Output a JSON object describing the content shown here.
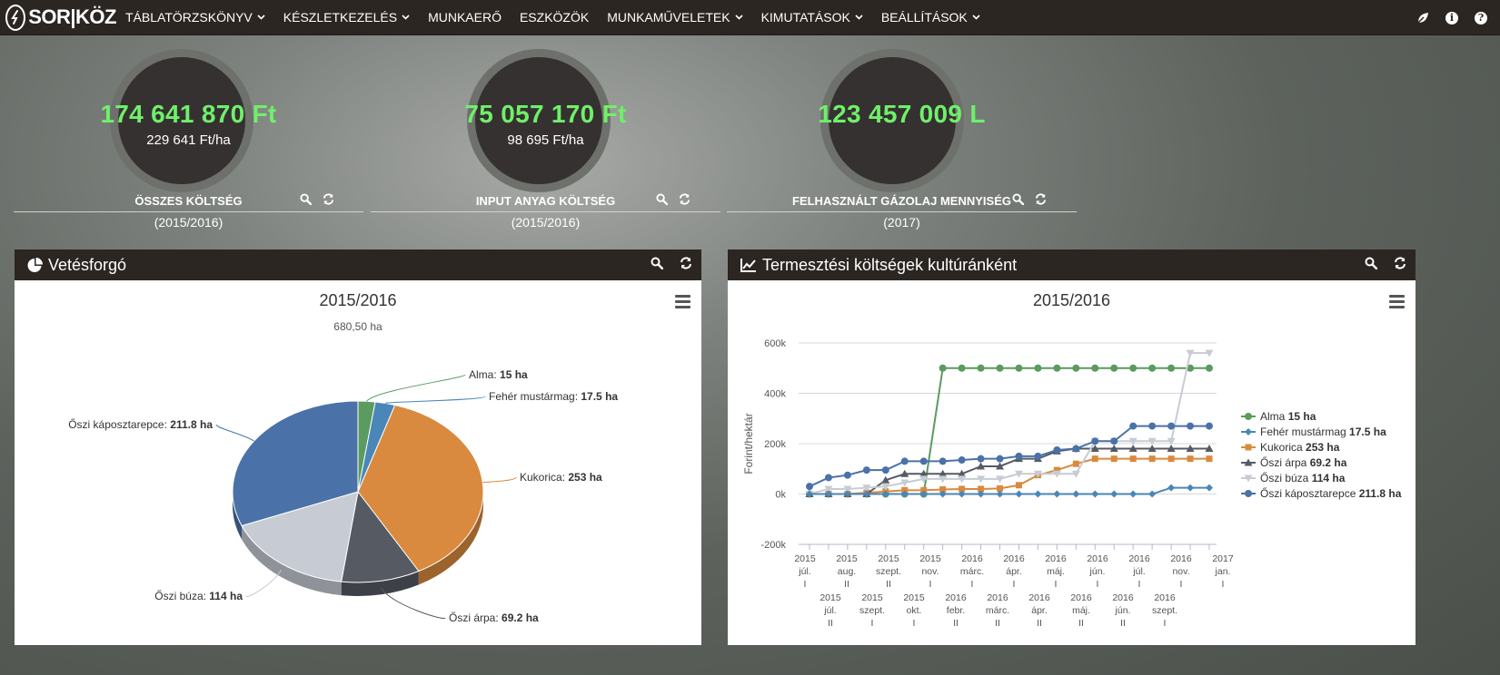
{
  "nav": {
    "brand": "SOR|KÖZ",
    "items": [
      {
        "label": "TÁBLATÖRZSKÖNYV",
        "caret": true
      },
      {
        "label": "KÉSZLETKEZELÉS",
        "caret": true
      },
      {
        "label": "MUNKAERŐ",
        "caret": false
      },
      {
        "label": "ESZKÖZÖK",
        "caret": false
      },
      {
        "label": "MUNKAMŰVELETEK",
        "caret": true
      },
      {
        "label": "KIMUTATÁSOK",
        "caret": true
      },
      {
        "label": "BEÁLLÍTÁSOK",
        "caret": true
      }
    ],
    "right_icons": [
      "leaf-icon",
      "info-icon",
      "help-icon"
    ]
  },
  "kpis": [
    {
      "value": "174 641 870 Ft",
      "sub": "229 641 Ft/ha",
      "label": "ÖSSZES KÖLTSÉG",
      "period": "(2015/2016)"
    },
    {
      "value": "75 057 170 Ft",
      "sub": "98 695 Ft/ha",
      "label": "INPUT ANYAG KÖLTSÉG",
      "period": "(2015/2016)"
    },
    {
      "value": "123 457 009 L",
      "sub": "",
      "label": "FELHASZNÁLT GÁZOLAJ MENNYISÉG",
      "period": "(2017)"
    }
  ],
  "colors": {
    "kpi_value": "#6ff06a",
    "navbar": "#2b2622",
    "alma": "#5b9b5f",
    "feher_mustarmag": "#4a86b8",
    "kukorica": "#d98a3e",
    "oszi_arpa": "#555a63",
    "oszi_buza": "#c7ccd4",
    "oszi_kaposztarepce": "#4a72a8"
  },
  "pie_panel": {
    "title": "Vetésforgó",
    "chart_title": "2015/2016",
    "chart_sub": "680,50 ha"
  },
  "line_panel": {
    "title": "Termesztési költségek kultúránként",
    "chart_title": "2015/2016"
  },
  "chart_data": [
    {
      "type": "pie",
      "title": "2015/2016",
      "subtitle": "680,50 ha",
      "unit": "ha",
      "slices": [
        {
          "name": "Alma",
          "value": 15,
          "display": "15 ha"
        },
        {
          "name": "Fehér mustármag",
          "value": 17.5,
          "display": "17.5 ha"
        },
        {
          "name": "Kukorica",
          "value": 253,
          "display": "253 ha"
        },
        {
          "name": "Őszi árpa",
          "value": 69.2,
          "display": "69.2 ha"
        },
        {
          "name": "Őszi búza",
          "value": 114,
          "display": "114 ha"
        },
        {
          "name": "Őszi káposztarepce",
          "value": 211.8,
          "display": "211.8 ha"
        }
      ]
    },
    {
      "type": "line",
      "title": "2015/2016",
      "ylabel": "Forint/hektár",
      "ylim": [
        -200000,
        600000
      ],
      "yticks": [
        "-200k",
        "0k",
        "200k",
        "400k",
        "600k"
      ],
      "ytick_values": [
        -200000,
        0,
        200000,
        400000,
        600000
      ],
      "x_labels_top": [
        "2015 júl. I",
        "2015 aug. II",
        "2015 szept. II",
        "2015 nov. I",
        "2016 márc. I",
        "2016 ápr. I",
        "2016 máj. I",
        "2016 jún. I",
        "2016 júl. I",
        "2016 nov. I",
        "2017 jan. I"
      ],
      "x_labels_bottom": [
        "2015 júl. II",
        "2015 szept. I",
        "2015 okt. I",
        "2016 febr. II",
        "2016 márc. II",
        "2016 ápr. II",
        "2016 máj. II",
        "2016 jún. II",
        "2016 szept. I"
      ],
      "legend": "right",
      "series": [
        {
          "name": "Alma",
          "display": "15 ha",
          "marker": "circle",
          "values": [
            0,
            0,
            0,
            0,
            0,
            0,
            0,
            500000,
            500000,
            500000,
            500000,
            500000,
            500000,
            500000,
            500000,
            500000,
            500000,
            500000,
            500000,
            500000,
            500000,
            500000
          ]
        },
        {
          "name": "Fehér mustármag",
          "display": "17.5 ha",
          "marker": "diamond",
          "values": [
            0,
            0,
            0,
            0,
            0,
            0,
            0,
            0,
            0,
            0,
            0,
            0,
            0,
            0,
            0,
            0,
            0,
            0,
            0,
            25000,
            25000,
            25000
          ]
        },
        {
          "name": "Kukorica",
          "display": "253 ha",
          "marker": "square",
          "values": [
            0,
            0,
            0,
            5000,
            10000,
            15000,
            15000,
            18000,
            20000,
            20000,
            22000,
            35000,
            75000,
            95000,
            120000,
            140000,
            140000,
            140000,
            140000,
            140000,
            140000,
            140000
          ]
        },
        {
          "name": "Őszi árpa",
          "display": "69.2 ha",
          "marker": "triangle",
          "values": [
            0,
            0,
            0,
            0,
            55000,
            80000,
            80000,
            80000,
            80000,
            110000,
            110000,
            140000,
            140000,
            170000,
            180000,
            180000,
            180000,
            180000,
            180000,
            180000,
            180000,
            180000
          ]
        },
        {
          "name": "Őszi búza",
          "display": "114 ha",
          "marker": "triangle-down",
          "values": [
            0,
            20000,
            20000,
            25000,
            30000,
            45000,
            60000,
            60000,
            60000,
            60000,
            60000,
            80000,
            80000,
            80000,
            80000,
            210000,
            210000,
            210000,
            210000,
            210000,
            560000,
            560000
          ]
        },
        {
          "name": "Őszi káposztarepce",
          "display": "211.8 ha",
          "marker": "circle",
          "values": [
            30000,
            65000,
            75000,
            95000,
            95000,
            130000,
            130000,
            130000,
            135000,
            140000,
            140000,
            150000,
            150000,
            175000,
            180000,
            210000,
            210000,
            270000,
            270000,
            270000,
            270000,
            270000
          ]
        }
      ]
    }
  ]
}
